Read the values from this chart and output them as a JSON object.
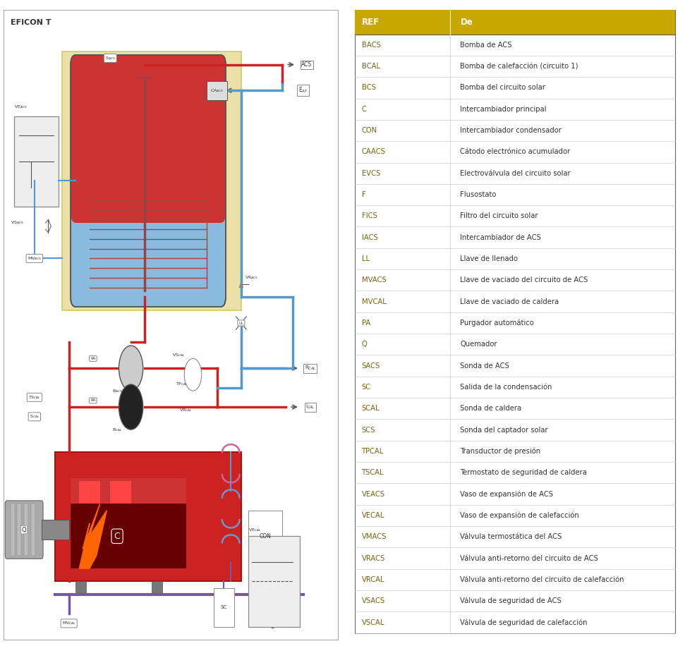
{
  "title_left": "EFICON T",
  "table_header": [
    "REF",
    "De"
  ],
  "table_header_color": "#C8A800",
  "table_rows": [
    [
      "BACS",
      "Bomba de ACS"
    ],
    [
      "BCAL",
      "Bomba de calefacción (circuito 1)"
    ],
    [
      "BCS",
      "Bomba del circuito solar"
    ],
    [
      "C",
      "Intercambiador principal"
    ],
    [
      "CON",
      "Intercambiador condensador"
    ],
    [
      "CAACS",
      "Cátodo electrónico acumulador"
    ],
    [
      "EVCS",
      "Electroválvula del circuito solar"
    ],
    [
      "F",
      "Flusostato"
    ],
    [
      "FICS",
      "Filtro del circuito solar"
    ],
    [
      "IACS",
      "Intercambiador de ACS"
    ],
    [
      "LL",
      "Llave de llenado"
    ],
    [
      "MVACS",
      "Llave de vaciado del circuito de ACS"
    ],
    [
      "MVCAL",
      "Llave de vaciado de caldera"
    ],
    [
      "PA",
      "Purgador automático"
    ],
    [
      "Q",
      "Quemador"
    ],
    [
      "SACS",
      "Sonda de ACS"
    ],
    [
      "SC",
      "Salida de la condensación"
    ],
    [
      "SCAL",
      "Sonda de caldera"
    ],
    [
      "SCS",
      "Sonda del captador solar"
    ],
    [
      "TPCAL",
      "Transductor de presión"
    ],
    [
      "TSCAL",
      "Termostato de seguridad de caldera"
    ],
    [
      "VEACS",
      "Vaso de expansión de ACS"
    ],
    [
      "VECAL",
      "Vaso de expansión de calefacción"
    ],
    [
      "VMACS",
      "Válvula termostática del ACS"
    ],
    [
      "VRACS",
      "Válvula anti-retorno del circuito de ACS"
    ],
    [
      "VRCAL",
      "Válvula anti-retorno del circuito de calefacción"
    ],
    [
      "VSACS",
      "Válvula de seguridad de ACS"
    ],
    [
      "VSCAL",
      "Válvula de seguridad de calefacción"
    ]
  ],
  "border_color": "#555555",
  "text_color_ref": "#7A6010",
  "text_color_de": "#333333",
  "row_line_color": "#CCCCCC",
  "red_pipe": "#CC2222",
  "blue_pipe": "#5599CC",
  "purple_pipe": "#7755AA",
  "tank_red": "#CC3333",
  "tank_blue": "#88BBDD",
  "tank_yellow_bg": "#EAE0A8",
  "boiler_red": "#CC2222",
  "label_font_size": 6.5,
  "header_font_size": 8.5,
  "row_font_size": 7.2
}
